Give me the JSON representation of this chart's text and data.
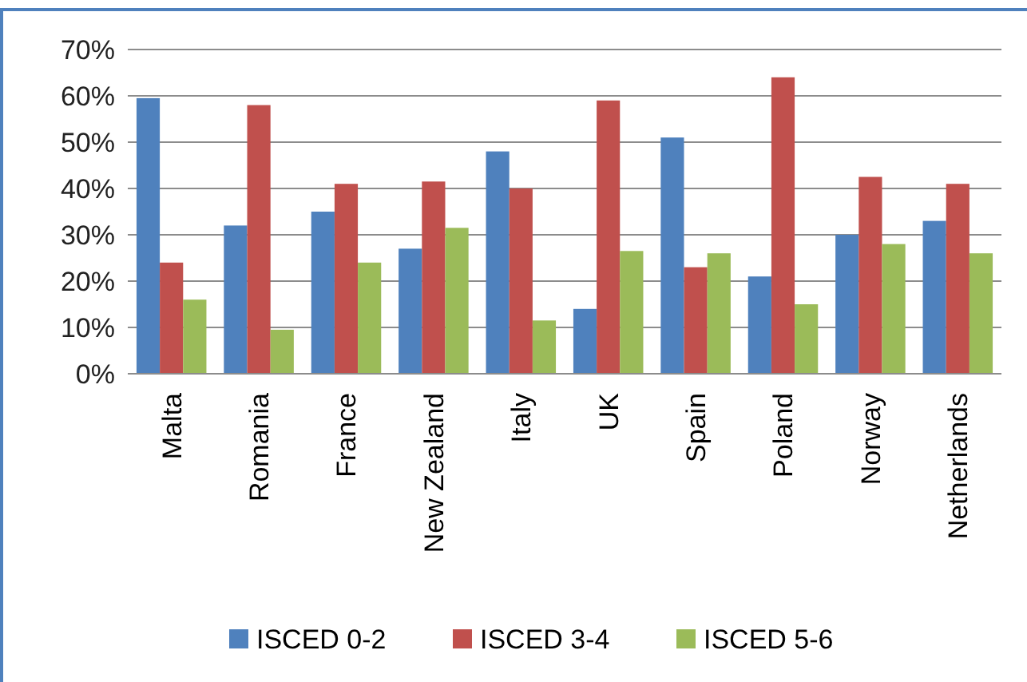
{
  "chart_data": {
    "type": "bar",
    "categories": [
      "Malta",
      "Romania",
      "France",
      "New Zealand",
      "Italy",
      "UK",
      "Spain",
      "Poland",
      "Norway",
      "Netherlands"
    ],
    "series": [
      {
        "name": "ISCED 0-2",
        "color": "#4f81bd",
        "values": [
          59.5,
          32,
          35,
          27,
          48,
          14,
          51,
          21,
          30,
          33
        ]
      },
      {
        "name": "ISCED 3-4",
        "color": "#c0504d",
        "values": [
          24,
          58,
          41,
          41.5,
          40,
          59,
          23,
          64,
          42.5,
          41
        ]
      },
      {
        "name": "ISCED 5-6",
        "color": "#9bbb59",
        "values": [
          16,
          9.5,
          24,
          31.5,
          11.5,
          26.5,
          26,
          15,
          28,
          26
        ]
      }
    ],
    "ylim": [
      0,
      70
    ],
    "yticks": [
      {
        "value": 0,
        "label": "0%"
      },
      {
        "value": 10,
        "label": "10%"
      },
      {
        "value": 20,
        "label": "20%"
      },
      {
        "value": 30,
        "label": "30%"
      },
      {
        "value": 40,
        "label": "40%"
      },
      {
        "value": 50,
        "label": "50%"
      },
      {
        "value": 60,
        "label": "60%"
      },
      {
        "value": 70,
        "label": "70%"
      }
    ],
    "grid": "y",
    "legend": "bottom"
  }
}
